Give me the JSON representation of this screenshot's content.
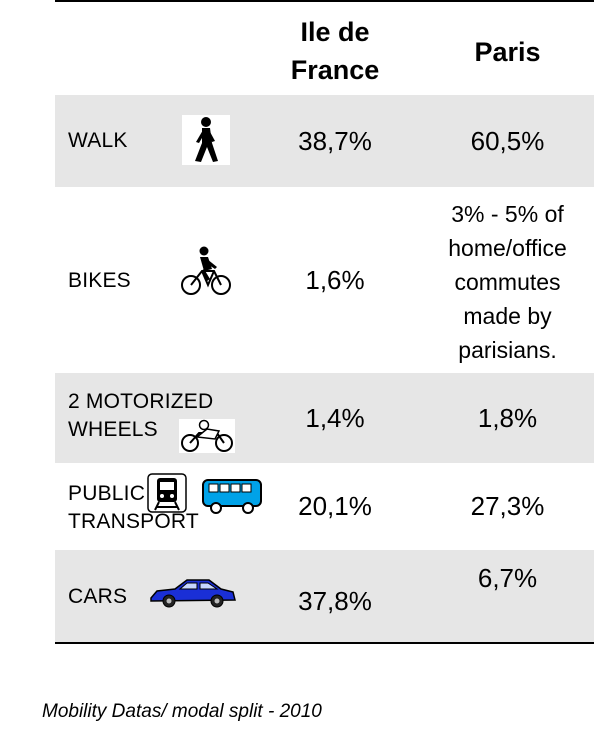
{
  "header": {
    "col_idf": "Ile de France",
    "col_idf_line1": "Ile de",
    "col_idf_line2": "France",
    "col_paris": "Paris"
  },
  "rows": [
    {
      "mode": "WALK",
      "icon": "walking-person-icon",
      "idf": "38,7%",
      "paris": "60,5%"
    },
    {
      "mode": "BIKES",
      "icon": "cyclist-icon",
      "idf": "1,6%",
      "paris": "3% - 5% of home/office commutes made by parisians.",
      "paris_lines": [
        "3% - 5% of",
        "home/office",
        "commutes",
        "made by",
        "parisians."
      ]
    },
    {
      "mode": "2 MOTORIZED WHEELS",
      "mode_lines": [
        "2 MOTORIZED",
        "WHEELS"
      ],
      "icon": "motorcycle-icon",
      "idf": "1,4%",
      "paris": "1,8%"
    },
    {
      "mode": "PUBLIC TRANSPORT",
      "mode_lines": [
        "PUBLIC",
        "TRANSPORT"
      ],
      "icon": "train-and-bus-icon",
      "idf": "20,1%",
      "paris": "27,3%"
    },
    {
      "mode": "CARS",
      "icon": "car-icon",
      "idf": "37,8%",
      "paris": "6,7%"
    }
  ],
  "caption": "Mobility Datas/ modal split - 2010"
}
